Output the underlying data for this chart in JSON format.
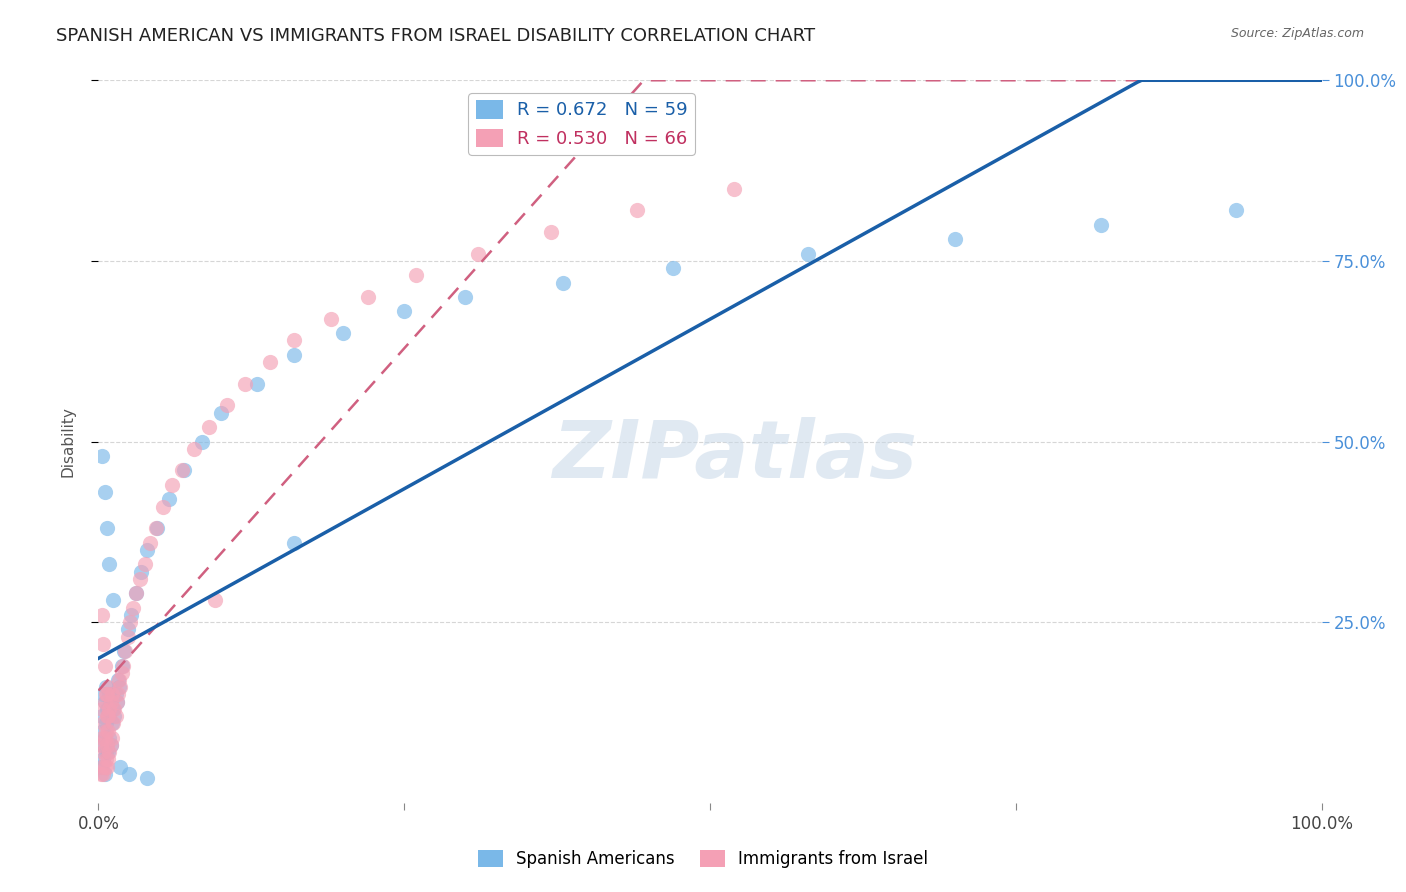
{
  "title": "SPANISH AMERICAN VS IMMIGRANTS FROM ISRAEL DISABILITY CORRELATION CHART",
  "source": "Source: ZipAtlas.com",
  "ylabel": "Disability",
  "series1_name": "Spanish Americans",
  "series1_color": "#7ab8e8",
  "series1_line_color": "#1a5fa8",
  "series2_name": "Immigrants from Israel",
  "series2_color": "#f4a0b5",
  "series2_line_color": "#d06080",
  "series1_R": 0.672,
  "series1_N": 59,
  "series2_R": 0.53,
  "series2_N": 66,
  "watermark": "ZIPatlas",
  "background_color": "#ffffff",
  "grid_color": "#cccccc",
  "title_fontsize": 13,
  "ytick_color": "#4a90d9",
  "series1_x": [
    0.002,
    0.003,
    0.003,
    0.004,
    0.004,
    0.004,
    0.005,
    0.005,
    0.005,
    0.006,
    0.006,
    0.006,
    0.007,
    0.007,
    0.008,
    0.008,
    0.009,
    0.009,
    0.01,
    0.01,
    0.011,
    0.012,
    0.013,
    0.014,
    0.015,
    0.016,
    0.017,
    0.019,
    0.021,
    0.024,
    0.027,
    0.031,
    0.035,
    0.04,
    0.048,
    0.058,
    0.07,
    0.085,
    0.1,
    0.13,
    0.16,
    0.2,
    0.25,
    0.3,
    0.38,
    0.47,
    0.58,
    0.7,
    0.82,
    0.93,
    0.003,
    0.005,
    0.007,
    0.009,
    0.012,
    0.018,
    0.025,
    0.04,
    0.16
  ],
  "series1_y": [
    0.05,
    0.08,
    0.12,
    0.06,
    0.1,
    0.15,
    0.04,
    0.09,
    0.14,
    0.07,
    0.11,
    0.16,
    0.08,
    0.13,
    0.07,
    0.12,
    0.09,
    0.15,
    0.08,
    0.14,
    0.11,
    0.13,
    0.12,
    0.15,
    0.14,
    0.17,
    0.16,
    0.19,
    0.21,
    0.24,
    0.26,
    0.29,
    0.32,
    0.35,
    0.38,
    0.42,
    0.46,
    0.5,
    0.54,
    0.58,
    0.62,
    0.65,
    0.68,
    0.7,
    0.72,
    0.74,
    0.76,
    0.78,
    0.8,
    0.82,
    0.48,
    0.43,
    0.38,
    0.33,
    0.28,
    0.05,
    0.04,
    0.035,
    0.36
  ],
  "series2_x": [
    0.002,
    0.002,
    0.003,
    0.003,
    0.003,
    0.004,
    0.004,
    0.004,
    0.005,
    0.005,
    0.005,
    0.006,
    0.006,
    0.006,
    0.007,
    0.007,
    0.007,
    0.008,
    0.008,
    0.008,
    0.009,
    0.009,
    0.01,
    0.01,
    0.011,
    0.011,
    0.012,
    0.013,
    0.014,
    0.015,
    0.016,
    0.017,
    0.018,
    0.019,
    0.02,
    0.022,
    0.024,
    0.026,
    0.028,
    0.031,
    0.034,
    0.038,
    0.042,
    0.047,
    0.053,
    0.06,
    0.068,
    0.078,
    0.09,
    0.105,
    0.12,
    0.14,
    0.16,
    0.19,
    0.22,
    0.26,
    0.31,
    0.37,
    0.44,
    0.52,
    0.003,
    0.004,
    0.005,
    0.007,
    0.008,
    0.095
  ],
  "series2_y": [
    0.04,
    0.08,
    0.05,
    0.09,
    0.13,
    0.04,
    0.07,
    0.11,
    0.05,
    0.09,
    0.14,
    0.06,
    0.1,
    0.15,
    0.05,
    0.08,
    0.12,
    0.06,
    0.1,
    0.16,
    0.07,
    0.13,
    0.08,
    0.14,
    0.09,
    0.15,
    0.11,
    0.13,
    0.12,
    0.14,
    0.15,
    0.17,
    0.16,
    0.18,
    0.19,
    0.21,
    0.23,
    0.25,
    0.27,
    0.29,
    0.31,
    0.33,
    0.36,
    0.38,
    0.41,
    0.44,
    0.46,
    0.49,
    0.52,
    0.55,
    0.58,
    0.61,
    0.64,
    0.67,
    0.7,
    0.73,
    0.76,
    0.79,
    0.82,
    0.85,
    0.26,
    0.22,
    0.19,
    0.15,
    0.12,
    0.28
  ]
}
